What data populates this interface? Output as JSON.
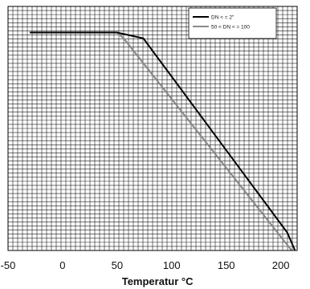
{
  "chart_data": {
    "type": "line",
    "title": "",
    "xlabel": "Temperatur °C",
    "ylabel": "",
    "xlim": [
      -50,
      215
    ],
    "ylim": [
      0,
      1.03
    ],
    "x_ticks": [
      "-50",
      "0",
      "50",
      "100",
      "150",
      "200"
    ],
    "y_ticks": [],
    "grid": "dense",
    "legend_position": "top-right",
    "series": [
      {
        "name": "DN < = 2\"",
        "color": "#000000",
        "x": [
          -30,
          50,
          74,
          206,
          213
        ],
        "y": [
          0.92,
          0.92,
          0.895,
          0.075,
          0
        ]
      },
      {
        "name": "50 < DN < = 100",
        "color": "#8a8a8a",
        "x": [
          -30,
          50,
          56,
          210
        ],
        "y": [
          0.92,
          0.92,
          0.895,
          0
        ]
      }
    ]
  }
}
